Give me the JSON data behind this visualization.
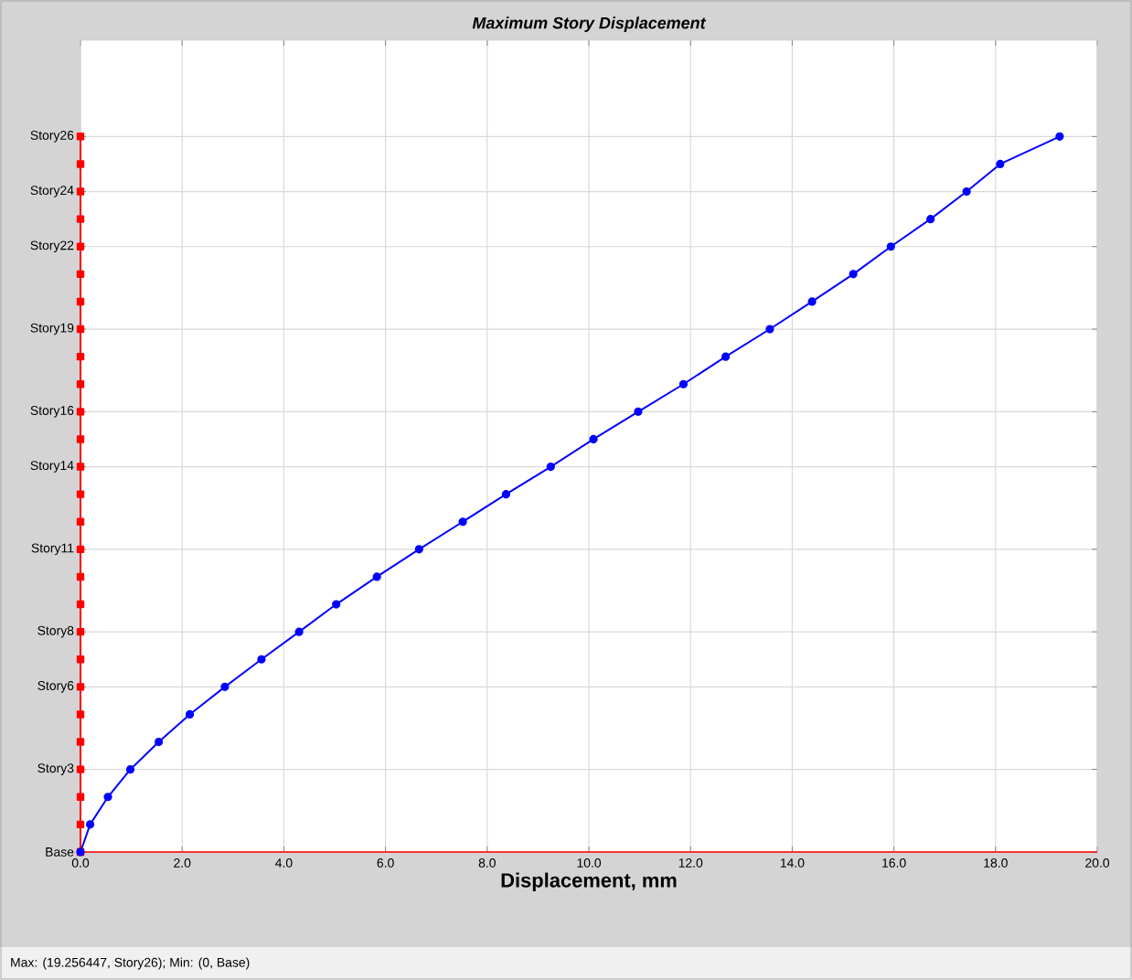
{
  "chart_data": {
    "type": "line",
    "orientation": "horizontal",
    "title": "Maximum Story Displacement",
    "xlabel": "Displacement, mm",
    "xlim": [
      0,
      20
    ],
    "xticks": [
      {
        "value": 0,
        "label": "0.0"
      },
      {
        "value": 2,
        "label": "2.0"
      },
      {
        "value": 4,
        "label": "4.0"
      },
      {
        "value": 6,
        "label": "6.0"
      },
      {
        "value": 8,
        "label": "8.0"
      },
      {
        "value": 10,
        "label": "10.0"
      },
      {
        "value": 12,
        "label": "12.0"
      },
      {
        "value": 14,
        "label": "14.0"
      },
      {
        "value": 16,
        "label": "16.0"
      },
      {
        "value": 18,
        "label": "18.0"
      },
      {
        "value": 20,
        "label": "20.0"
      }
    ],
    "categories": [
      "Story26",
      null,
      "Story24",
      null,
      "Story22",
      null,
      null,
      "Story19",
      null,
      null,
      "Story16",
      null,
      "Story14",
      null,
      null,
      "Story11",
      null,
      null,
      "Story8",
      null,
      "Story6",
      null,
      null,
      "Story3",
      null,
      null,
      "Base"
    ],
    "grid": true,
    "legend": false,
    "series": [
      {
        "color": "#ff0000",
        "marker": "square",
        "values": [
          0,
          0,
          0,
          0,
          0,
          0,
          0,
          0,
          0,
          0,
          0,
          0,
          0,
          0,
          0,
          0,
          0,
          0,
          0,
          0,
          0,
          0,
          0,
          0,
          0,
          0,
          0
        ]
      },
      {
        "color": "#0000ff",
        "marker": "circle",
        "values": [
          19.26,
          18.09,
          17.43,
          16.72,
          15.94,
          15.2,
          14.39,
          13.56,
          12.69,
          11.86,
          10.97,
          10.09,
          9.25,
          8.37,
          7.52,
          6.66,
          5.83,
          5.03,
          4.3,
          3.56,
          2.84,
          2.15,
          1.54,
          0.98,
          0.54,
          0.19,
          0
        ]
      }
    ],
    "annotations": [
      "Max: (19.256447, Story26);   Min: (0, Base)"
    ]
  }
}
